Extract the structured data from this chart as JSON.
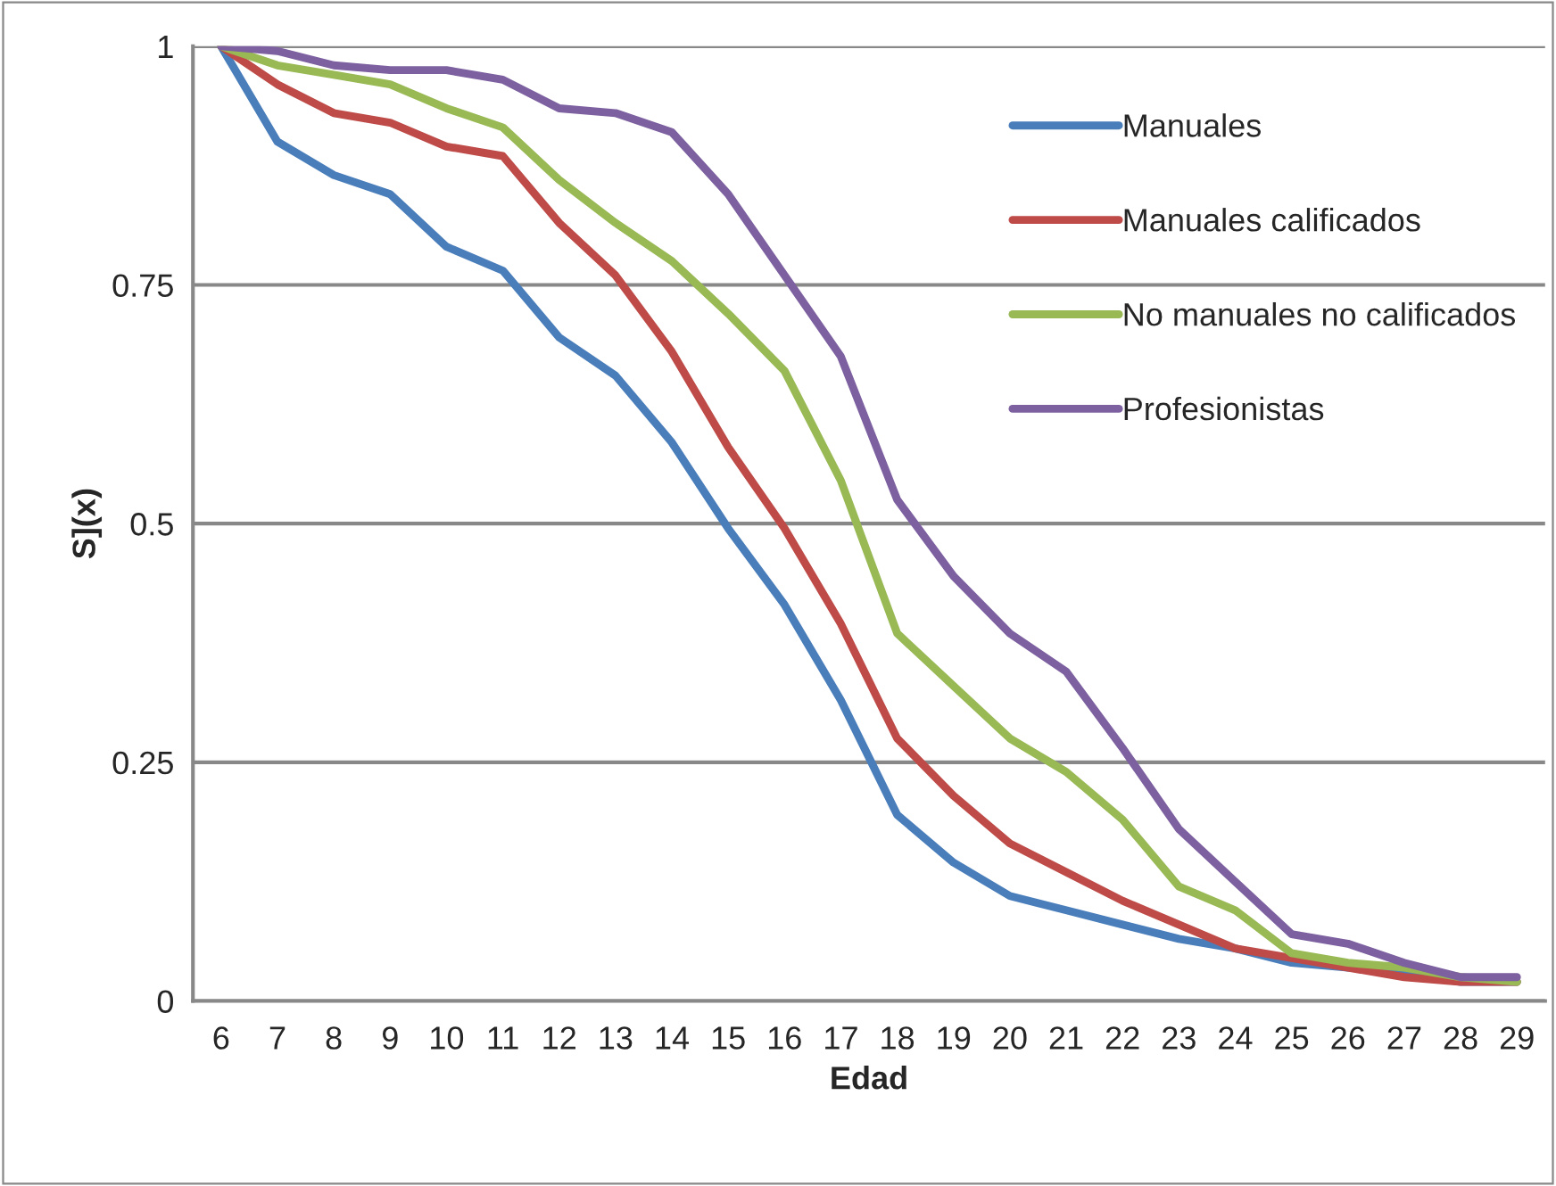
{
  "chart_data": {
    "type": "line",
    "xlabel": "Edad",
    "ylabel": "S](x)",
    "categories": [
      "6",
      "7",
      "8",
      "9",
      "10",
      "11",
      "12",
      "13",
      "14",
      "15",
      "16",
      "17",
      "18",
      "19",
      "20",
      "21",
      "22",
      "23",
      "24",
      "25",
      "26",
      "27",
      "28",
      "29"
    ],
    "series": [
      {
        "name": "Manuales",
        "color": "#4a7ebb",
        "values": [
          1,
          0.9,
          0.865,
          0.845,
          0.79,
          0.765,
          0.695,
          0.655,
          0.585,
          0.495,
          0.415,
          0.315,
          0.195,
          0.145,
          0.11,
          0.095,
          0.08,
          0.065,
          0.055,
          0.04,
          0.035,
          0.03,
          0.02,
          0.02
        ]
      },
      {
        "name": "Manuales calificados",
        "color": "#be4b48",
        "values": [
          1,
          0.96,
          0.93,
          0.92,
          0.895,
          0.885,
          0.815,
          0.76,
          0.68,
          0.58,
          0.495,
          0.395,
          0.275,
          0.215,
          0.165,
          0.135,
          0.105,
          0.08,
          0.055,
          0.045,
          0.035,
          0.025,
          0.02,
          0.02
        ]
      },
      {
        "name": "No manuales no calificados",
        "color": "#98b954",
        "values": [
          1,
          0.98,
          0.97,
          0.96,
          0.935,
          0.915,
          0.86,
          0.815,
          0.775,
          0.72,
          0.66,
          0.545,
          0.385,
          0.33,
          0.275,
          0.24,
          0.19,
          0.12,
          0.095,
          0.05,
          0.04,
          0.035,
          0.025,
          0.02
        ]
      },
      {
        "name": "Profesionistas",
        "color": "#7d60a0",
        "values": [
          1,
          0.995,
          0.98,
          0.975,
          0.975,
          0.965,
          0.935,
          0.93,
          0.91,
          0.845,
          0.76,
          0.675,
          0.525,
          0.445,
          0.385,
          0.345,
          0.265,
          0.18,
          0.125,
          0.07,
          0.06,
          0.04,
          0.025,
          0.025
        ]
      }
    ],
    "ylim": [
      0,
      1
    ],
    "yticks": [
      0,
      0.25,
      0.5,
      0.75,
      1
    ],
    "grid": "y",
    "legend": "right",
    "marker": "none",
    "line_style": "solid"
  }
}
